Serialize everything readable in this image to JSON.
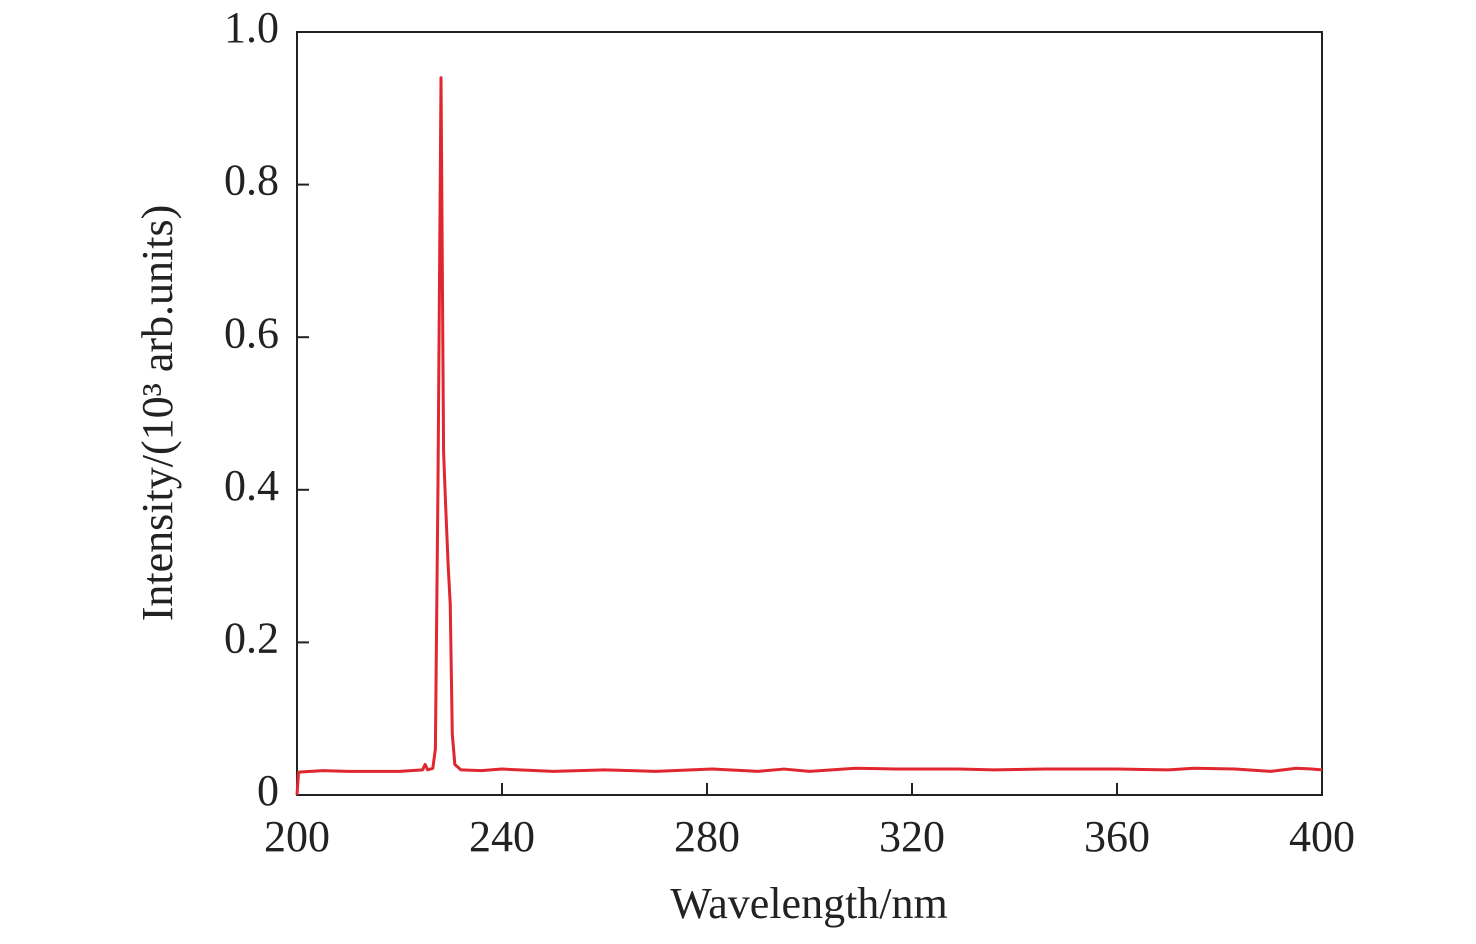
{
  "chart_data": {
    "type": "line",
    "x_label": "Wavelength/nm",
    "y_label": "Intensity/(10³ arb.units)",
    "xlim": [
      200,
      400
    ],
    "xticks": [
      200,
      240,
      280,
      320,
      360,
      400
    ],
    "ylim": [
      0,
      1
    ],
    "yticks": [
      0,
      0.2,
      0.4,
      0.6,
      0.8,
      {
        "value": 1,
        "label": "1.0"
      }
    ],
    "grid": false,
    "series": [
      {
        "color": "#e0262e",
        "x": [
          200,
          200.3,
          205,
          210,
          220,
          224.5,
          225,
          225.5,
          226.5,
          227,
          227.5,
          228.1,
          228.6,
          229,
          229.5,
          229.9,
          230.3,
          230.8,
          232,
          236,
          240,
          250,
          260,
          270,
          281,
          290,
          295,
          300,
          309,
          317,
          329,
          336,
          346,
          358,
          360,
          370,
          375,
          383,
          390,
          395,
          398,
          400
        ],
        "values": [
          0,
          0.03,
          0.032,
          0.031,
          0.031,
          0.033,
          0.04,
          0.033,
          0.035,
          0.06,
          0.4,
          0.94,
          0.45,
          0.38,
          0.3,
          0.25,
          0.08,
          0.04,
          0.033,
          0.032,
          0.034,
          0.031,
          0.033,
          0.031,
          0.034,
          0.031,
          0.034,
          0.031,
          0.035,
          0.034,
          0.034,
          0.033,
          0.034,
          0.034,
          0.034,
          0.033,
          0.035,
          0.034,
          0.031,
          0.035,
          0.034,
          0.033
        ]
      }
    ]
  }
}
